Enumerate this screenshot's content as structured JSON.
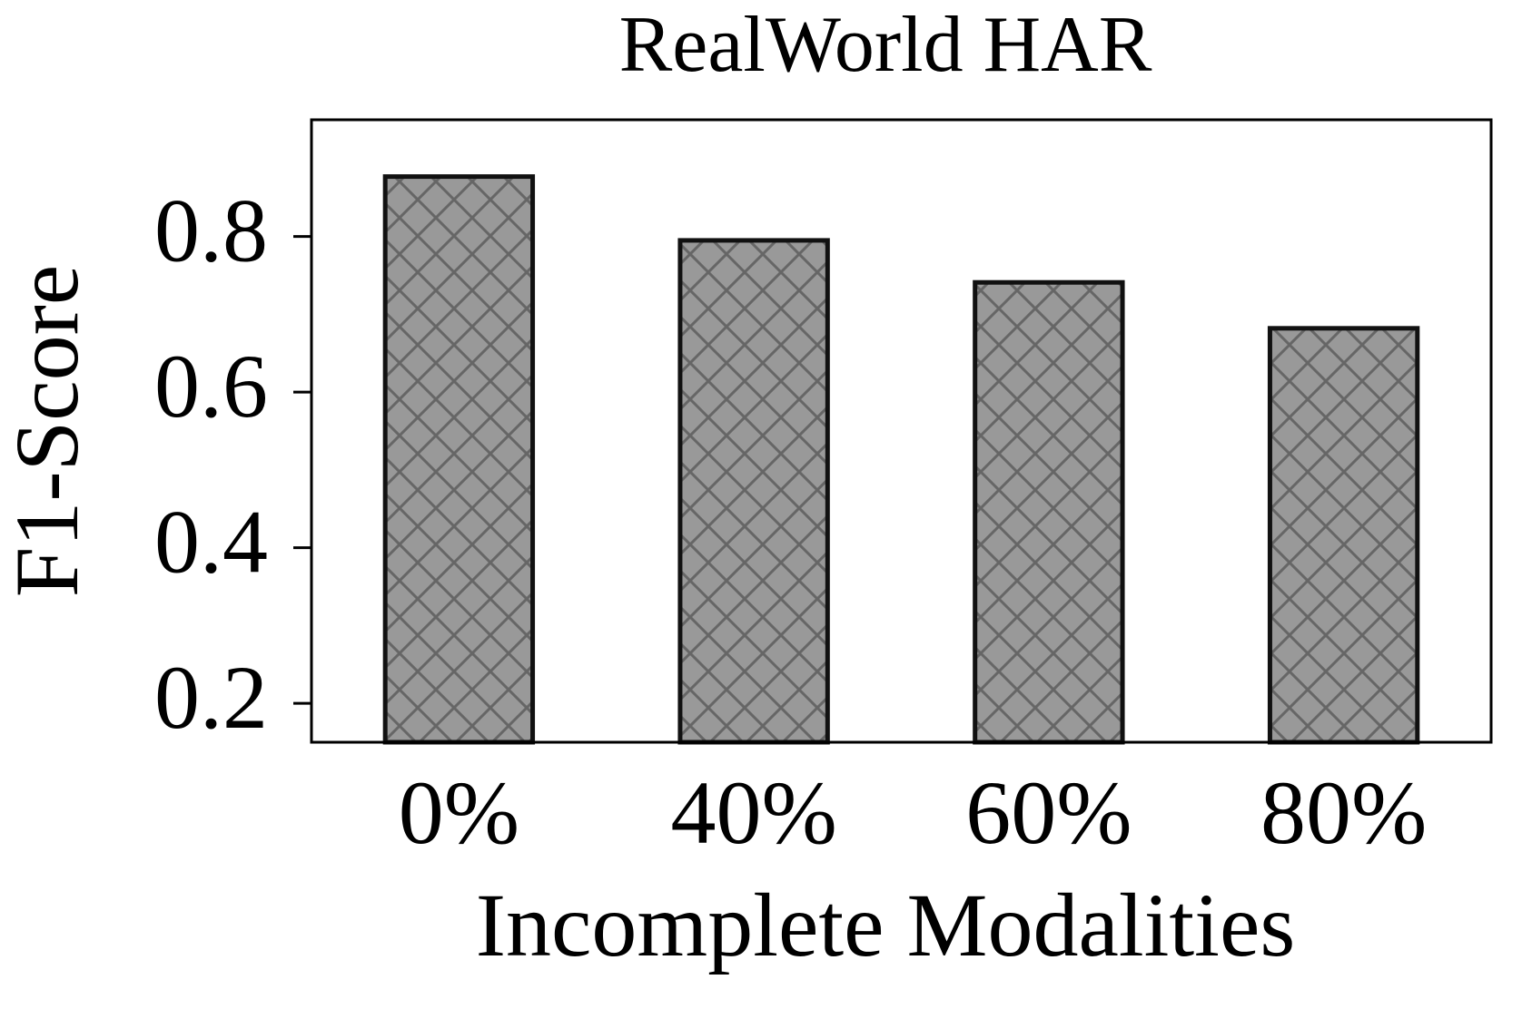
{
  "chart_data": {
    "type": "bar",
    "title": "RealWorld HAR",
    "xlabel": "Incomplete Modalities",
    "ylabel": "F1-Score",
    "categories": [
      "0%",
      "40%",
      "60%",
      "80%"
    ],
    "values": [
      0.877,
      0.795,
      0.741,
      0.682
    ],
    "color": "#999999",
    "hatch": "x",
    "ylim": [
      0.15,
      0.95
    ],
    "yticks": [
      0.2,
      0.4,
      0.6,
      0.8
    ],
    "grid": false
  }
}
